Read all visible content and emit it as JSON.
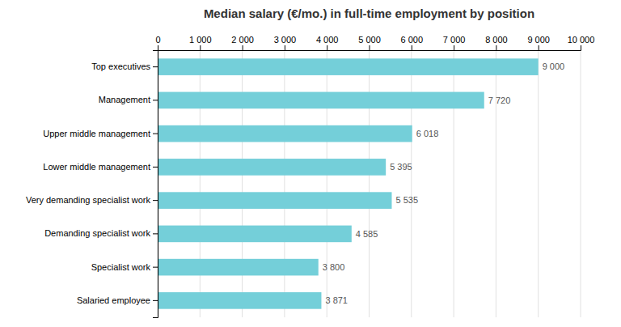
{
  "chart_data": {
    "type": "bar",
    "orientation": "horizontal",
    "title": "Median salary (€/mo.) in full-time employment by position",
    "categories": [
      "Salaried employee",
      "Specialist work",
      "Demanding specialist work",
      "Very demanding specialist work",
      "Lower middle management",
      "Upper middle management",
      "Management",
      "Top executives"
    ],
    "values": [
      3871,
      3800,
      4585,
      5535,
      5395,
      6018,
      7720,
      9000
    ],
    "value_labels": [
      "3 871",
      "3 800",
      "4 585",
      "5 535",
      "5 395",
      "6 018",
      "7 720",
      "9 000"
    ],
    "data_labels": true,
    "color": "#74CFD9",
    "xlim": [
      0,
      10000
    ],
    "xticks": [
      0,
      {
        "value": 1000,
        "label": "1 000"
      },
      {
        "value": 2000,
        "label": "2 000"
      },
      {
        "value": 3000,
        "label": "3 000"
      },
      {
        "value": 4000,
        "label": "4 000"
      },
      {
        "value": 5000,
        "label": "5 000"
      },
      {
        "value": 6000,
        "label": "6 000"
      },
      {
        "value": 7000,
        "label": "7 000"
      },
      {
        "value": 8000,
        "label": "8 000"
      },
      {
        "value": 9000,
        "label": "9 000"
      },
      {
        "value": 10000,
        "label": "10 000"
      }
    ],
    "grid": true
  }
}
